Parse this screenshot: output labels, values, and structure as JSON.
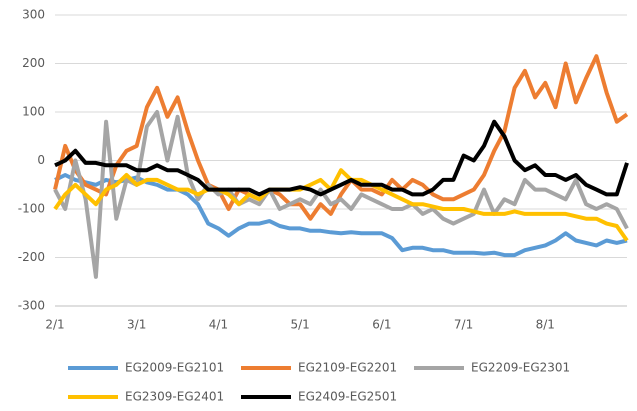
{
  "chart_data": {
    "type": "line",
    "categories": [
      "2/1",
      null,
      null,
      null,
      null,
      null,
      null,
      null,
      "3/1",
      null,
      null,
      null,
      null,
      null,
      null,
      null,
      "4/1",
      null,
      null,
      null,
      null,
      null,
      null,
      null,
      "5/1",
      null,
      null,
      null,
      null,
      null,
      null,
      null,
      "6/1",
      null,
      null,
      null,
      null,
      null,
      null,
      null,
      "7/1",
      null,
      null,
      null,
      null,
      null,
      null,
      null,
      "8/1",
      null,
      null,
      null,
      null,
      null,
      null,
      null,
      null
    ],
    "ylim": [
      -300,
      300
    ],
    "yticks": [
      -300,
      -200,
      -100,
      0,
      100,
      200,
      300
    ],
    "grid": true,
    "legend": "bottom",
    "series": [
      {
        "name": "EG2009-EG2101",
        "color": "#5b9bd5",
        "values": [
          -40,
          -30,
          -40,
          -45,
          -50,
          -40,
          -45,
          -40,
          -35,
          -45,
          -50,
          -60,
          -60,
          -70,
          -90,
          -130,
          -140,
          -155,
          -140,
          -130,
          -130,
          -125,
          -135,
          -140,
          -140,
          -145,
          -145,
          -148,
          -150,
          -148,
          -150,
          -150,
          -150,
          -160,
          -185,
          -180,
          -180,
          -185,
          -185,
          -190,
          -190,
          -190,
          -192,
          -190,
          -195,
          -195,
          -185,
          -180,
          -175,
          -165,
          -150,
          -165,
          -170,
          -175,
          -165,
          -170,
          -165
        ]
      },
      {
        "name": "EG2109-EG2201",
        "color": "#ed7d31",
        "values": [
          -60,
          30,
          -20,
          -50,
          -60,
          -70,
          -10,
          20,
          30,
          110,
          150,
          90,
          130,
          60,
          0,
          -50,
          -60,
          -100,
          -60,
          -70,
          -80,
          -60,
          -70,
          -90,
          -90,
          -120,
          -90,
          -110,
          -70,
          -40,
          -60,
          -60,
          -70,
          -40,
          -60,
          -40,
          -50,
          -70,
          -80,
          -80,
          -70,
          -60,
          -30,
          20,
          60,
          150,
          185,
          130,
          160,
          110,
          200,
          120,
          170,
          215,
          140,
          80,
          95
        ]
      },
      {
        "name": "EG2209-EG2301",
        "color": "#a5a5a5",
        "values": [
          -60,
          -100,
          0,
          -80,
          -240,
          80,
          -120,
          -40,
          -50,
          70,
          100,
          0,
          90,
          -30,
          -80,
          -50,
          -70,
          -60,
          -90,
          -80,
          -90,
          -60,
          -100,
          -90,
          -80,
          -90,
          -60,
          -90,
          -80,
          -100,
          -70,
          -80,
          -90,
          -100,
          -100,
          -90,
          -110,
          -100,
          -120,
          -130,
          -120,
          -110,
          -60,
          -110,
          -80,
          -90,
          -40,
          -60,
          -60,
          -70,
          -80,
          -40,
          -90,
          -100,
          -90,
          -100,
          -140
        ]
      },
      {
        "name": "EG2309-EG2401",
        "color": "#ffc000",
        "values": [
          -100,
          -70,
          -50,
          -70,
          -90,
          -60,
          -50,
          -30,
          -50,
          -40,
          -40,
          -50,
          -60,
          -60,
          -70,
          -60,
          -60,
          -70,
          -90,
          -70,
          -80,
          -60,
          -60,
          -60,
          -60,
          -50,
          -40,
          -60,
          -20,
          -40,
          -40,
          -50,
          -60,
          -70,
          -80,
          -90,
          -90,
          -95,
          -100,
          -100,
          -100,
          -105,
          -110,
          -110,
          -110,
          -105,
          -110,
          -110,
          -110,
          -110,
          -110,
          -115,
          -120,
          -120,
          -130,
          -135,
          -165
        ]
      },
      {
        "name": "EG2409-EG2501",
        "color": "#000000",
        "values": [
          -10,
          0,
          20,
          -5,
          -5,
          -10,
          -10,
          -10,
          -20,
          -20,
          -10,
          -20,
          -20,
          -30,
          -40,
          -60,
          -60,
          -60,
          -60,
          -60,
          -70,
          -60,
          -60,
          -60,
          -55,
          -60,
          -70,
          -60,
          -50,
          -40,
          -50,
          -50,
          -50,
          -60,
          -60,
          -70,
          -70,
          -60,
          -40,
          -40,
          10,
          0,
          30,
          80,
          50,
          0,
          -20,
          -10,
          -30,
          -30,
          -40,
          -30,
          -50,
          -60,
          -70,
          -70,
          -5
        ]
      }
    ]
  }
}
